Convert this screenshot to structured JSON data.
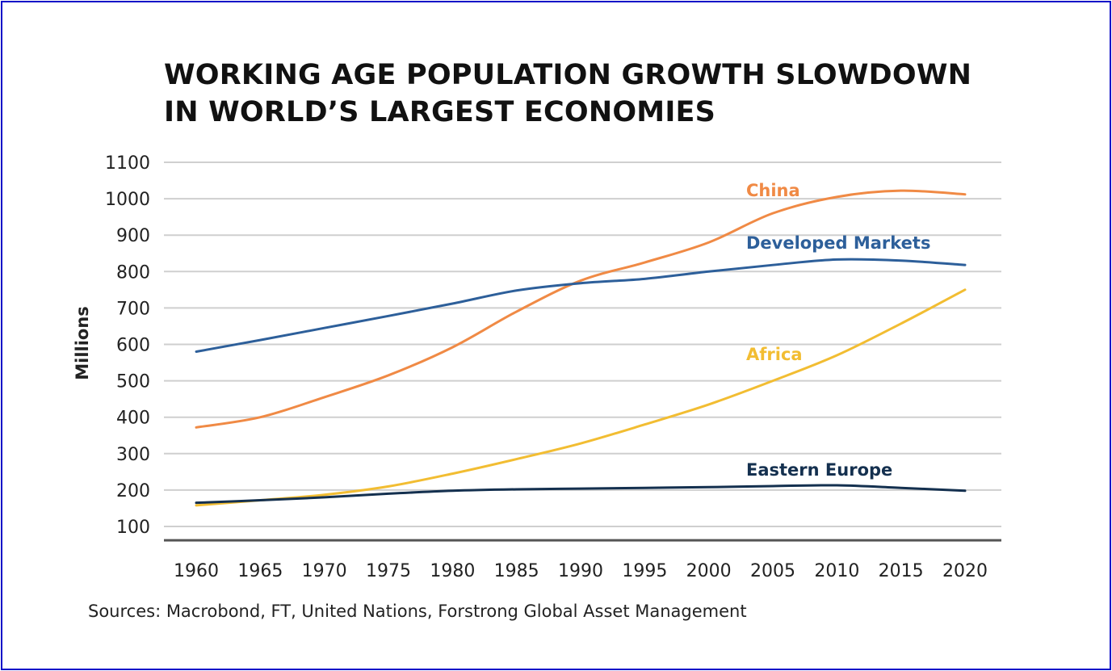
{
  "chart_data": {
    "type": "line",
    "title": [
      "WORKING AGE POPULATION GROWTH SLOWDOWN",
      "IN WORLD’S LARGEST ECONOMIES"
    ],
    "xlabel": "",
    "ylabel": "Millions",
    "x": [
      1960,
      1965,
      1970,
      1975,
      1980,
      1985,
      1990,
      1995,
      2000,
      2005,
      2010,
      2015,
      2020
    ],
    "x_tick_labels": [
      "1960",
      "1965",
      "1970",
      "1975",
      "1980",
      "1985",
      "1990",
      "1995",
      "2000",
      "2005",
      "2010",
      "2015",
      "2020"
    ],
    "y_tick_labels": [
      "1100",
      "1000",
      "900",
      "800",
      "700",
      "600",
      "500",
      "400",
      "300",
      "200",
      "100"
    ],
    "y_ticks": [
      1100,
      1000,
      900,
      800,
      700,
      600,
      500,
      400,
      300,
      200,
      100
    ],
    "ylim": [
      62,
      1100
    ],
    "grid": true,
    "legend": "inline labels near line ends",
    "series": [
      {
        "name": "China",
        "color": "#f08a45",
        "values": [
          372,
          400,
          455,
          515,
          592,
          690,
          775,
          825,
          880,
          960,
          1005,
          1022,
          1012
        ]
      },
      {
        "name": "Developed Markets",
        "color": "#2d5f9a",
        "values": [
          580,
          612,
          645,
          678,
          712,
          748,
          768,
          780,
          800,
          818,
          833,
          830,
          818
        ]
      },
      {
        "name": "Africa",
        "color": "#f2bd32",
        "values": [
          158,
          172,
          187,
          210,
          245,
          285,
          328,
          380,
          435,
          500,
          570,
          657,
          750
        ]
      },
      {
        "name": "Eastern Europe",
        "color": "#14304f",
        "values": [
          165,
          172,
          180,
          190,
          198,
          202,
          204,
          206,
          208,
          211,
          213,
          206,
          198
        ]
      }
    ]
  },
  "source": "Sources: Macrobond, FT, United Nations, Forstrong Global Asset Management"
}
